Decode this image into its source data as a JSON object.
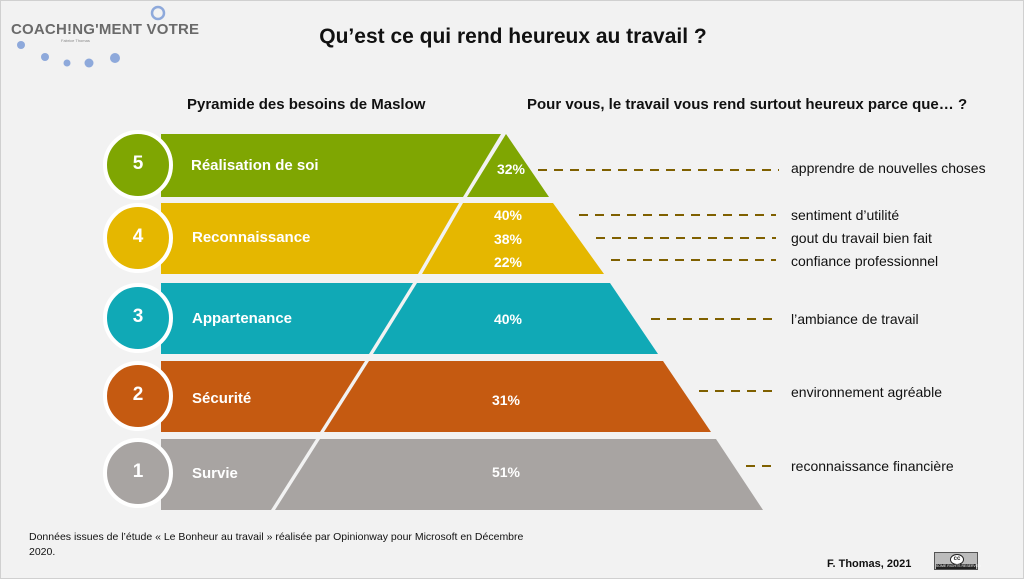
{
  "logo": {
    "text": "COACH!NG'MENT VOTRE",
    "subtitle": "Fabrice Thomas"
  },
  "title": "Qu’est ce qui rend heureux au travail ?",
  "left_heading": "Pyramide des besoins de Maslow",
  "right_heading": "Pour vous, le travail vous rend surtout heureux parce que… ?",
  "levels": [
    {
      "number": "5",
      "label": "Réalisation de soi",
      "color": "#7fa602"
    },
    {
      "number": "4",
      "label": "Reconnaissance",
      "color": "#e5b700"
    },
    {
      "number": "3",
      "label": "Appartenance",
      "color": "#10a9b6"
    },
    {
      "number": "2",
      "label": "Sécurité",
      "color": "#c55a11"
    },
    {
      "number": "1",
      "label": "Survie",
      "color": "#a8a4a2"
    }
  ],
  "answers": [
    {
      "percent": "32%",
      "label": "apprendre de nouvelles choses"
    },
    {
      "percent": "40%",
      "label": "sentiment d’utilité"
    },
    {
      "percent": "38%",
      "label": "gout du travail bien fait"
    },
    {
      "percent": "22%",
      "label": "confiance professionnel"
    },
    {
      "percent": "40%",
      "label": " l’ambiance de travail"
    },
    {
      "percent": "31%",
      "label": "environnement agréable"
    },
    {
      "percent": "51%",
      "label": "reconnaissance financière"
    }
  ],
  "footer": "Données issues de l’étude « Le Bonheur au travail » réalisée par Opinionway pour Microsoft en Décembre 2020.",
  "credit": "F. Thomas, 2021",
  "license": {
    "symbol": "cc",
    "text": "SOME RIGHTS RESERVED"
  },
  "leader_color": "#7f6000"
}
